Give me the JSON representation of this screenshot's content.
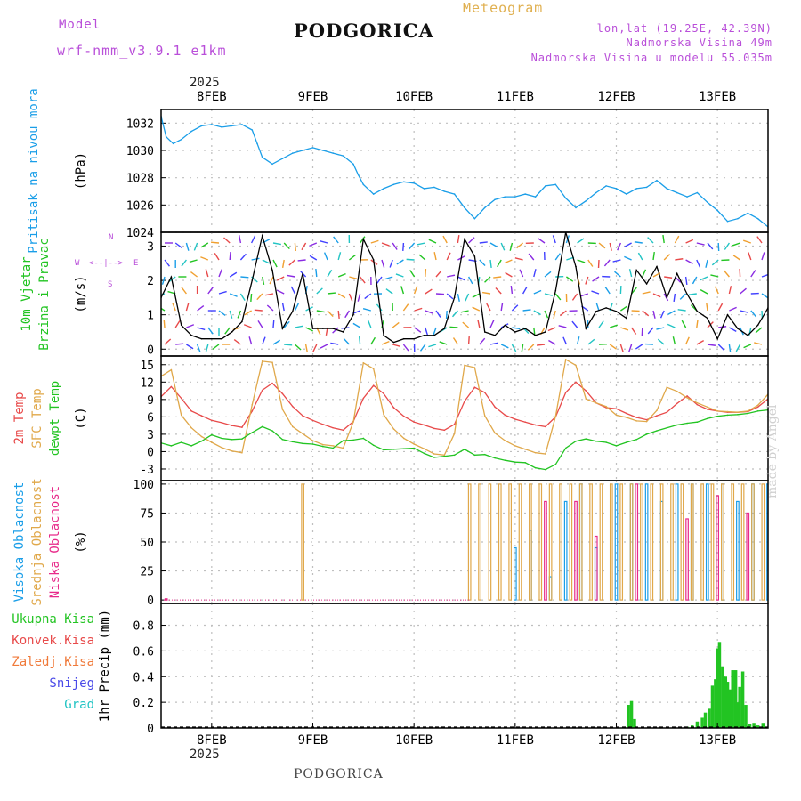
{
  "header": {
    "model_label": "Model",
    "model_name": "wrf-nmm_v3.9.1 e1km",
    "title": "PODGORICA",
    "meteogram": "Meteogram",
    "lonlat": "lon,lat (19.25E, 42.39N)",
    "altitude": "Nadmorska Visina 49m",
    "model_altitude": "Nadmorska Visina u modelu 55.035m"
  },
  "footer": {
    "station": "PODGORICA",
    "credit": "made by Angel"
  },
  "colors": {
    "pressure": "#1a9ee8",
    "temp2m": "#e84a4a",
    "sfc": "#e0a84a",
    "dewpt": "#22c422",
    "high_cloud": "#1a9ee8",
    "mid_cloud": "#e0a84a",
    "low_cloud": "#e82a8a",
    "precip_total": "#22c422",
    "precip_conv": "#e84a4a",
    "precip_frozen": "#f07a3a",
    "snow": "#4a4ae8",
    "hail": "#22c4c4",
    "grid": "#bfbfbf",
    "wind_speed": "#000000"
  },
  "chart_data": [
    {
      "type": "line",
      "title": "",
      "ylabel": "(hPa)",
      "side_label": [
        "Pritisak na nivou mora"
      ],
      "ylim": [
        1024,
        1033
      ],
      "yticks": [
        1024,
        1026,
        1028,
        1030,
        1032
      ],
      "x_unit": "days since 2025-02-07 00:00",
      "x_range": [
        7.5,
        13.5
      ],
      "series": [
        {
          "name": "Pritisak na nivou mora",
          "x": [
            7.5,
            7.55,
            7.62,
            7.7,
            7.8,
            7.9,
            8.0,
            8.1,
            8.2,
            8.3,
            8.4,
            8.45,
            8.5,
            8.6,
            8.7,
            8.8,
            8.9,
            9.0,
            9.1,
            9.2,
            9.3,
            9.4,
            9.45,
            9.5,
            9.6,
            9.7,
            9.8,
            9.9,
            10.0,
            10.1,
            10.2,
            10.3,
            10.4,
            10.5,
            10.6,
            10.7,
            10.8,
            10.9,
            11.0,
            11.1,
            11.2,
            11.3,
            11.4,
            11.5,
            11.6,
            11.7,
            11.8,
            11.9,
            12.0,
            12.1,
            12.2,
            12.3,
            12.4,
            12.5,
            12.6,
            12.7,
            12.8,
            12.9,
            13.0,
            13.1,
            13.2,
            13.3,
            13.4,
            13.5
          ],
          "y": [
            1032.5,
            1031.0,
            1030.5,
            1030.8,
            1031.4,
            1031.8,
            1031.9,
            1031.7,
            1031.8,
            1031.9,
            1031.5,
            1030.5,
            1029.5,
            1029.0,
            1029.4,
            1029.8,
            1030.0,
            1030.2,
            1030.0,
            1029.8,
            1029.6,
            1029.0,
            1028.2,
            1027.5,
            1026.8,
            1027.2,
            1027.5,
            1027.7,
            1027.6,
            1027.2,
            1027.3,
            1027.0,
            1026.8,
            1025.8,
            1025.0,
            1025.8,
            1026.4,
            1026.6,
            1026.6,
            1026.8,
            1026.6,
            1027.4,
            1027.5,
            1026.5,
            1025.8,
            1026.3,
            1026.9,
            1027.4,
            1027.2,
            1026.8,
            1027.2,
            1027.3,
            1027.8,
            1027.2,
            1026.9,
            1026.6,
            1026.9,
            1026.2,
            1025.6,
            1024.8,
            1025.0,
            1025.4,
            1025.0,
            1024.4
          ]
        }
      ]
    },
    {
      "type": "line",
      "title": "",
      "ylabel": "(m/s)",
      "side_label": [
        "10m Vjetar",
        "Brzina i Pravac"
      ],
      "compass": [
        "N",
        "S",
        "W",
        "E"
      ],
      "ylim": [
        -0.2,
        3.4
      ],
      "yticks": [
        0,
        1,
        2,
        3
      ],
      "series": [
        {
          "name": "Brzina",
          "x": [
            7.5,
            7.6,
            7.7,
            7.8,
            7.9,
            8.0,
            8.1,
            8.2,
            8.3,
            8.4,
            8.5,
            8.6,
            8.7,
            8.8,
            8.9,
            9.0,
            9.1,
            9.2,
            9.3,
            9.4,
            9.5,
            9.6,
            9.7,
            9.8,
            9.9,
            10.0,
            10.1,
            10.2,
            10.3,
            10.4,
            10.5,
            10.6,
            10.7,
            10.8,
            10.9,
            11.0,
            11.1,
            11.2,
            11.3,
            11.4,
            11.5,
            11.6,
            11.7,
            11.8,
            11.9,
            12.0,
            12.1,
            12.2,
            12.3,
            12.4,
            12.5,
            12.6,
            12.7,
            12.8,
            12.9,
            13.0,
            13.1,
            13.2,
            13.3,
            13.4,
            13.5
          ],
          "y": [
            1.5,
            2.1,
            0.7,
            0.4,
            0.3,
            0.3,
            0.3,
            0.5,
            0.8,
            2.0,
            3.3,
            2.3,
            0.6,
            1.1,
            2.2,
            0.6,
            0.6,
            0.6,
            0.5,
            1.0,
            3.2,
            2.6,
            0.4,
            0.2,
            0.3,
            0.3,
            0.4,
            0.4,
            0.6,
            1.5,
            3.2,
            2.7,
            0.5,
            0.4,
            0.7,
            0.5,
            0.6,
            0.4,
            0.5,
            1.7,
            3.4,
            2.4,
            0.6,
            1.1,
            1.2,
            1.1,
            0.9,
            2.3,
            1.9,
            2.4,
            1.5,
            2.2,
            1.6,
            1.1,
            0.9,
            0.3,
            1.0,
            0.6,
            0.4,
            0.7,
            1.2
          ]
        }
      ]
    },
    {
      "type": "line",
      "title": "",
      "ylabel": "(C)",
      "side_label": [
        "2m Temp",
        "SFC Temp",
        "dewpt Temp"
      ],
      "ylim": [
        -5,
        16.5
      ],
      "yticks": [
        -3,
        0,
        3,
        6,
        9,
        12,
        15
      ],
      "series": [
        {
          "name": "2m Temp",
          "x": [
            7.5,
            7.6,
            7.7,
            7.8,
            7.9,
            8.0,
            8.1,
            8.2,
            8.3,
            8.4,
            8.5,
            8.6,
            8.7,
            8.8,
            8.9,
            9.0,
            9.1,
            9.2,
            9.3,
            9.4,
            9.5,
            9.6,
            9.7,
            9.8,
            9.9,
            10.0,
            10.1,
            10.2,
            10.3,
            10.4,
            10.5,
            10.6,
            10.7,
            10.8,
            10.9,
            11.0,
            11.1,
            11.2,
            11.3,
            11.4,
            11.5,
            11.6,
            11.7,
            11.8,
            11.9,
            12.0,
            12.1,
            12.2,
            12.3,
            12.4,
            12.5,
            12.6,
            12.7,
            12.8,
            12.9,
            13.0,
            13.1,
            13.2,
            13.3,
            13.4,
            13.5
          ],
          "y": [
            9.5,
            11.2,
            9.2,
            7.0,
            6.2,
            5.4,
            5.0,
            4.5,
            4.2,
            7.0,
            10.6,
            11.8,
            10.0,
            7.8,
            6.2,
            5.4,
            4.7,
            4.1,
            3.7,
            5.2,
            9.2,
            11.4,
            10.0,
            7.6,
            6.1,
            5.1,
            4.6,
            4.0,
            3.7,
            4.7,
            8.7,
            11.1,
            10.2,
            7.7,
            6.3,
            5.6,
            5.1,
            4.6,
            4.3,
            6.0,
            10.2,
            12.0,
            10.5,
            8.4,
            7.6,
            7.4,
            6.6,
            5.9,
            5.5,
            6.2,
            6.8,
            8.3,
            9.6,
            8.1,
            7.3,
            7.0,
            6.8,
            6.8,
            6.9,
            7.7,
            9.1
          ]
        },
        {
          "name": "SFC Temp",
          "x": [
            7.5,
            7.6,
            7.7,
            7.8,
            7.9,
            8.0,
            8.1,
            8.2,
            8.3,
            8.4,
            8.5,
            8.6,
            8.7,
            8.8,
            8.9,
            9.0,
            9.1,
            9.2,
            9.3,
            9.4,
            9.5,
            9.6,
            9.7,
            9.8,
            9.9,
            10.0,
            10.1,
            10.2,
            10.3,
            10.4,
            10.5,
            10.6,
            10.7,
            10.8,
            10.9,
            11.0,
            11.1,
            11.2,
            11.3,
            11.4,
            11.5,
            11.6,
            11.7,
            11.8,
            11.9,
            12.0,
            12.1,
            12.2,
            12.3,
            12.4,
            12.5,
            12.6,
            12.7,
            12.8,
            12.9,
            13.0,
            13.1,
            13.2,
            13.3,
            13.4,
            13.5
          ],
          "y": [
            13.0,
            14.1,
            6.3,
            4.1,
            2.6,
            1.6,
            0.7,
            0.1,
            -0.2,
            8.1,
            15.6,
            15.4,
            7.3,
            4.3,
            3.1,
            1.9,
            1.2,
            1.0,
            0.6,
            5.1,
            15.3,
            14.3,
            6.4,
            3.9,
            2.3,
            1.3,
            0.5,
            -0.4,
            -0.6,
            3.1,
            14.9,
            14.5,
            6.2,
            3.2,
            1.9,
            1.0,
            0.4,
            -0.2,
            -0.4,
            6.1,
            15.9,
            14.9,
            9.1,
            8.4,
            7.8,
            6.3,
            5.9,
            5.3,
            5.2,
            7.1,
            11.1,
            10.4,
            9.3,
            8.4,
            7.7,
            7.0,
            6.9,
            6.8,
            7.0,
            8.0,
            9.9
          ]
        },
        {
          "name": "dewpt Temp",
          "x": [
            7.5,
            7.6,
            7.7,
            7.8,
            7.9,
            8.0,
            8.1,
            8.2,
            8.3,
            8.4,
            8.5,
            8.6,
            8.7,
            8.8,
            8.9,
            9.0,
            9.1,
            9.2,
            9.3,
            9.4,
            9.5,
            9.6,
            9.7,
            9.8,
            9.9,
            10.0,
            10.1,
            10.2,
            10.3,
            10.4,
            10.5,
            10.6,
            10.7,
            10.8,
            10.9,
            11.0,
            11.1,
            11.2,
            11.3,
            11.4,
            11.5,
            11.6,
            11.7,
            11.8,
            11.9,
            12.0,
            12.1,
            12.2,
            12.3,
            12.4,
            12.5,
            12.6,
            12.7,
            12.8,
            12.9,
            13.0,
            13.1,
            13.2,
            13.3,
            13.4,
            13.5
          ],
          "y": [
            1.5,
            1.0,
            1.6,
            1.0,
            1.8,
            2.9,
            2.3,
            2.1,
            2.2,
            3.3,
            4.3,
            3.6,
            2.1,
            1.7,
            1.4,
            1.3,
            0.9,
            0.6,
            1.9,
            2.0,
            2.3,
            1.1,
            0.3,
            0.4,
            0.5,
            0.6,
            -0.3,
            -1.0,
            -0.8,
            -0.6,
            0.4,
            -0.6,
            -0.5,
            -1.1,
            -1.5,
            -1.8,
            -1.9,
            -2.8,
            -3.1,
            -2.2,
            0.6,
            1.8,
            2.2,
            1.8,
            1.6,
            1.0,
            1.6,
            2.1,
            3.0,
            3.6,
            4.1,
            4.6,
            4.9,
            5.1,
            5.7,
            6.1,
            6.3,
            6.4,
            6.6,
            7.0,
            7.2
          ]
        }
      ]
    },
    {
      "type": "bar",
      "title": "",
      "ylabel": "(%)",
      "side_label": [
        "Visoka Oblacnost",
        "Srednja Oblacnost",
        "Niska Oblacnost"
      ],
      "ylim": [
        -3,
        103
      ],
      "yticks": [
        0,
        25,
        50,
        75,
        100
      ],
      "series": [
        {
          "name": "Visoka Oblacnost",
          "x": [
            11.0,
            11.15,
            11.35,
            11.5,
            11.65,
            11.8,
            12.0,
            12.15,
            12.3,
            12.45,
            12.6,
            12.75,
            12.9,
            13.05,
            13.2,
            13.35,
            13.5
          ],
          "values": [
            45,
            60,
            20,
            85,
            100,
            45,
            100,
            100,
            100,
            85,
            100,
            100,
            100,
            100,
            85,
            100,
            100
          ]
        },
        {
          "name": "Srednja Oblacnost",
          "x": [
            8.9,
            10.55,
            10.65,
            10.75,
            10.85,
            10.95,
            11.05,
            11.15,
            11.25,
            11.35,
            11.45,
            11.55,
            11.65,
            11.75,
            11.85,
            11.95,
            12.05,
            12.15,
            12.25,
            12.35,
            12.45,
            12.55,
            12.65,
            12.75,
            12.85,
            12.95,
            13.05,
            13.15,
            13.25,
            13.35,
            13.45
          ],
          "values": [
            100,
            100,
            100,
            100,
            100,
            100,
            100,
            100,
            100,
            100,
            100,
            100,
            100,
            100,
            100,
            100,
            100,
            100,
            100,
            100,
            100,
            100,
            100,
            100,
            100,
            100,
            100,
            100,
            100,
            100,
            100
          ]
        },
        {
          "name": "Niska Oblacnost",
          "x": [
            7.55,
            11.3,
            11.6,
            11.8,
            12.2,
            12.7,
            13.0,
            13.3
          ],
          "values": [
            1,
            85,
            85,
            55,
            100,
            70,
            90,
            75
          ]
        }
      ]
    },
    {
      "type": "bar",
      "title": "",
      "ylabel": "1hr Precip (mm)",
      "side_label": [
        "Ukupna Kisa",
        "Konvek.Kisa",
        "Zaledj.Kisa",
        "Snijeg",
        "Grad"
      ],
      "ylim": [
        0,
        0.97
      ],
      "yticks": [
        0,
        0.2,
        0.4,
        0.6,
        0.8
      ],
      "series": [
        {
          "name": "Ukupna Kisa",
          "x": [
            12.12,
            12.15,
            12.18,
            12.7,
            12.75,
            12.8,
            12.85,
            12.88,
            12.92,
            12.95,
            12.98,
            13.0,
            13.02,
            13.05,
            13.08,
            13.1,
            13.12,
            13.15,
            13.18,
            13.2,
            13.22,
            13.25,
            13.28,
            13.32,
            13.36,
            13.4,
            13.45
          ],
          "values": [
            0.18,
            0.21,
            0.07,
            0.01,
            0.02,
            0.05,
            0.08,
            0.12,
            0.15,
            0.33,
            0.38,
            0.62,
            0.67,
            0.48,
            0.4,
            0.36,
            0.3,
            0.45,
            0.45,
            0.2,
            0.32,
            0.44,
            0.18,
            0.03,
            0.04,
            0.02,
            0.04
          ]
        }
      ]
    }
  ],
  "xaxis": {
    "ticks": [
      8,
      9,
      10,
      11,
      12,
      13
    ],
    "labels": [
      "8FEB",
      "9FEB",
      "10FEB",
      "11FEB",
      "12FEB",
      "13FEB"
    ],
    "year": "2025"
  }
}
